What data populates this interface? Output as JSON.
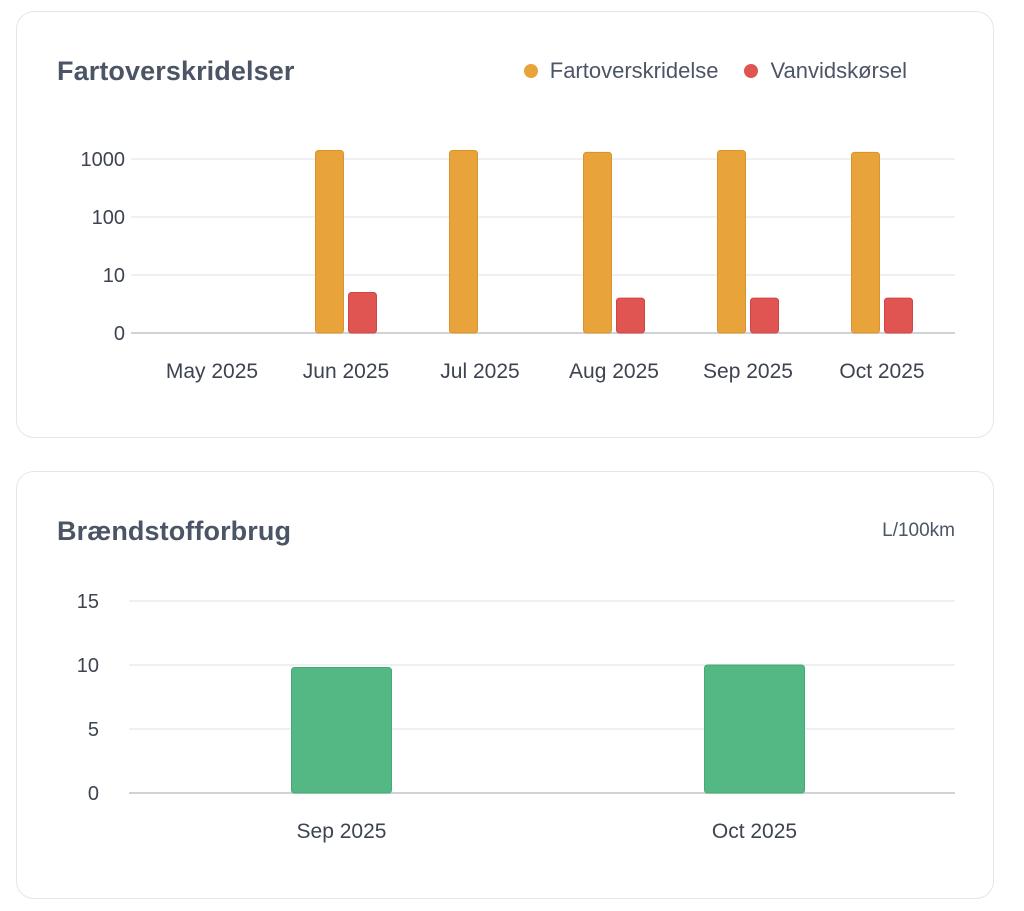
{
  "speeding": {
    "title": "Fartoverskridelser",
    "legend": [
      {
        "name": "Fartoverskridelse",
        "color": "#e8a33a"
      },
      {
        "name": "Vanvidskørsel",
        "color": "#e05552"
      }
    ]
  },
  "fuel": {
    "title": "Brændstofforbrug",
    "unit": "L/100km"
  },
  "chart_data": [
    {
      "type": "bar",
      "title": "Fartoverskridelser",
      "y_scale": "log",
      "y_ticks": [
        "0",
        "10",
        "100",
        "1000"
      ],
      "categories": [
        "May 2025",
        "Jun 2025",
        "Jul 2025",
        "Aug 2025",
        "Sep 2025",
        "Oct 2025"
      ],
      "series": [
        {
          "name": "Fartoverskridelse",
          "color": "#e8a33a",
          "values": [
            0,
            1400,
            1400,
            1300,
            1400,
            1300
          ]
        },
        {
          "name": "Vanvidskørsel",
          "color": "#e05552",
          "values": [
            0,
            4,
            0,
            3,
            3,
            3
          ]
        }
      ],
      "grid": true,
      "legend": "top-right"
    },
    {
      "type": "bar",
      "title": "Brændstofforbrug",
      "unit": "L/100km",
      "y_ticks": [
        "0",
        "5",
        "10",
        "15"
      ],
      "ylim": [
        0,
        15
      ],
      "categories": [
        "Sep 2025",
        "Oct 2025"
      ],
      "series": [
        {
          "color": "#54b884",
          "values": [
            9.8,
            10.0
          ]
        }
      ],
      "grid": true
    }
  ]
}
